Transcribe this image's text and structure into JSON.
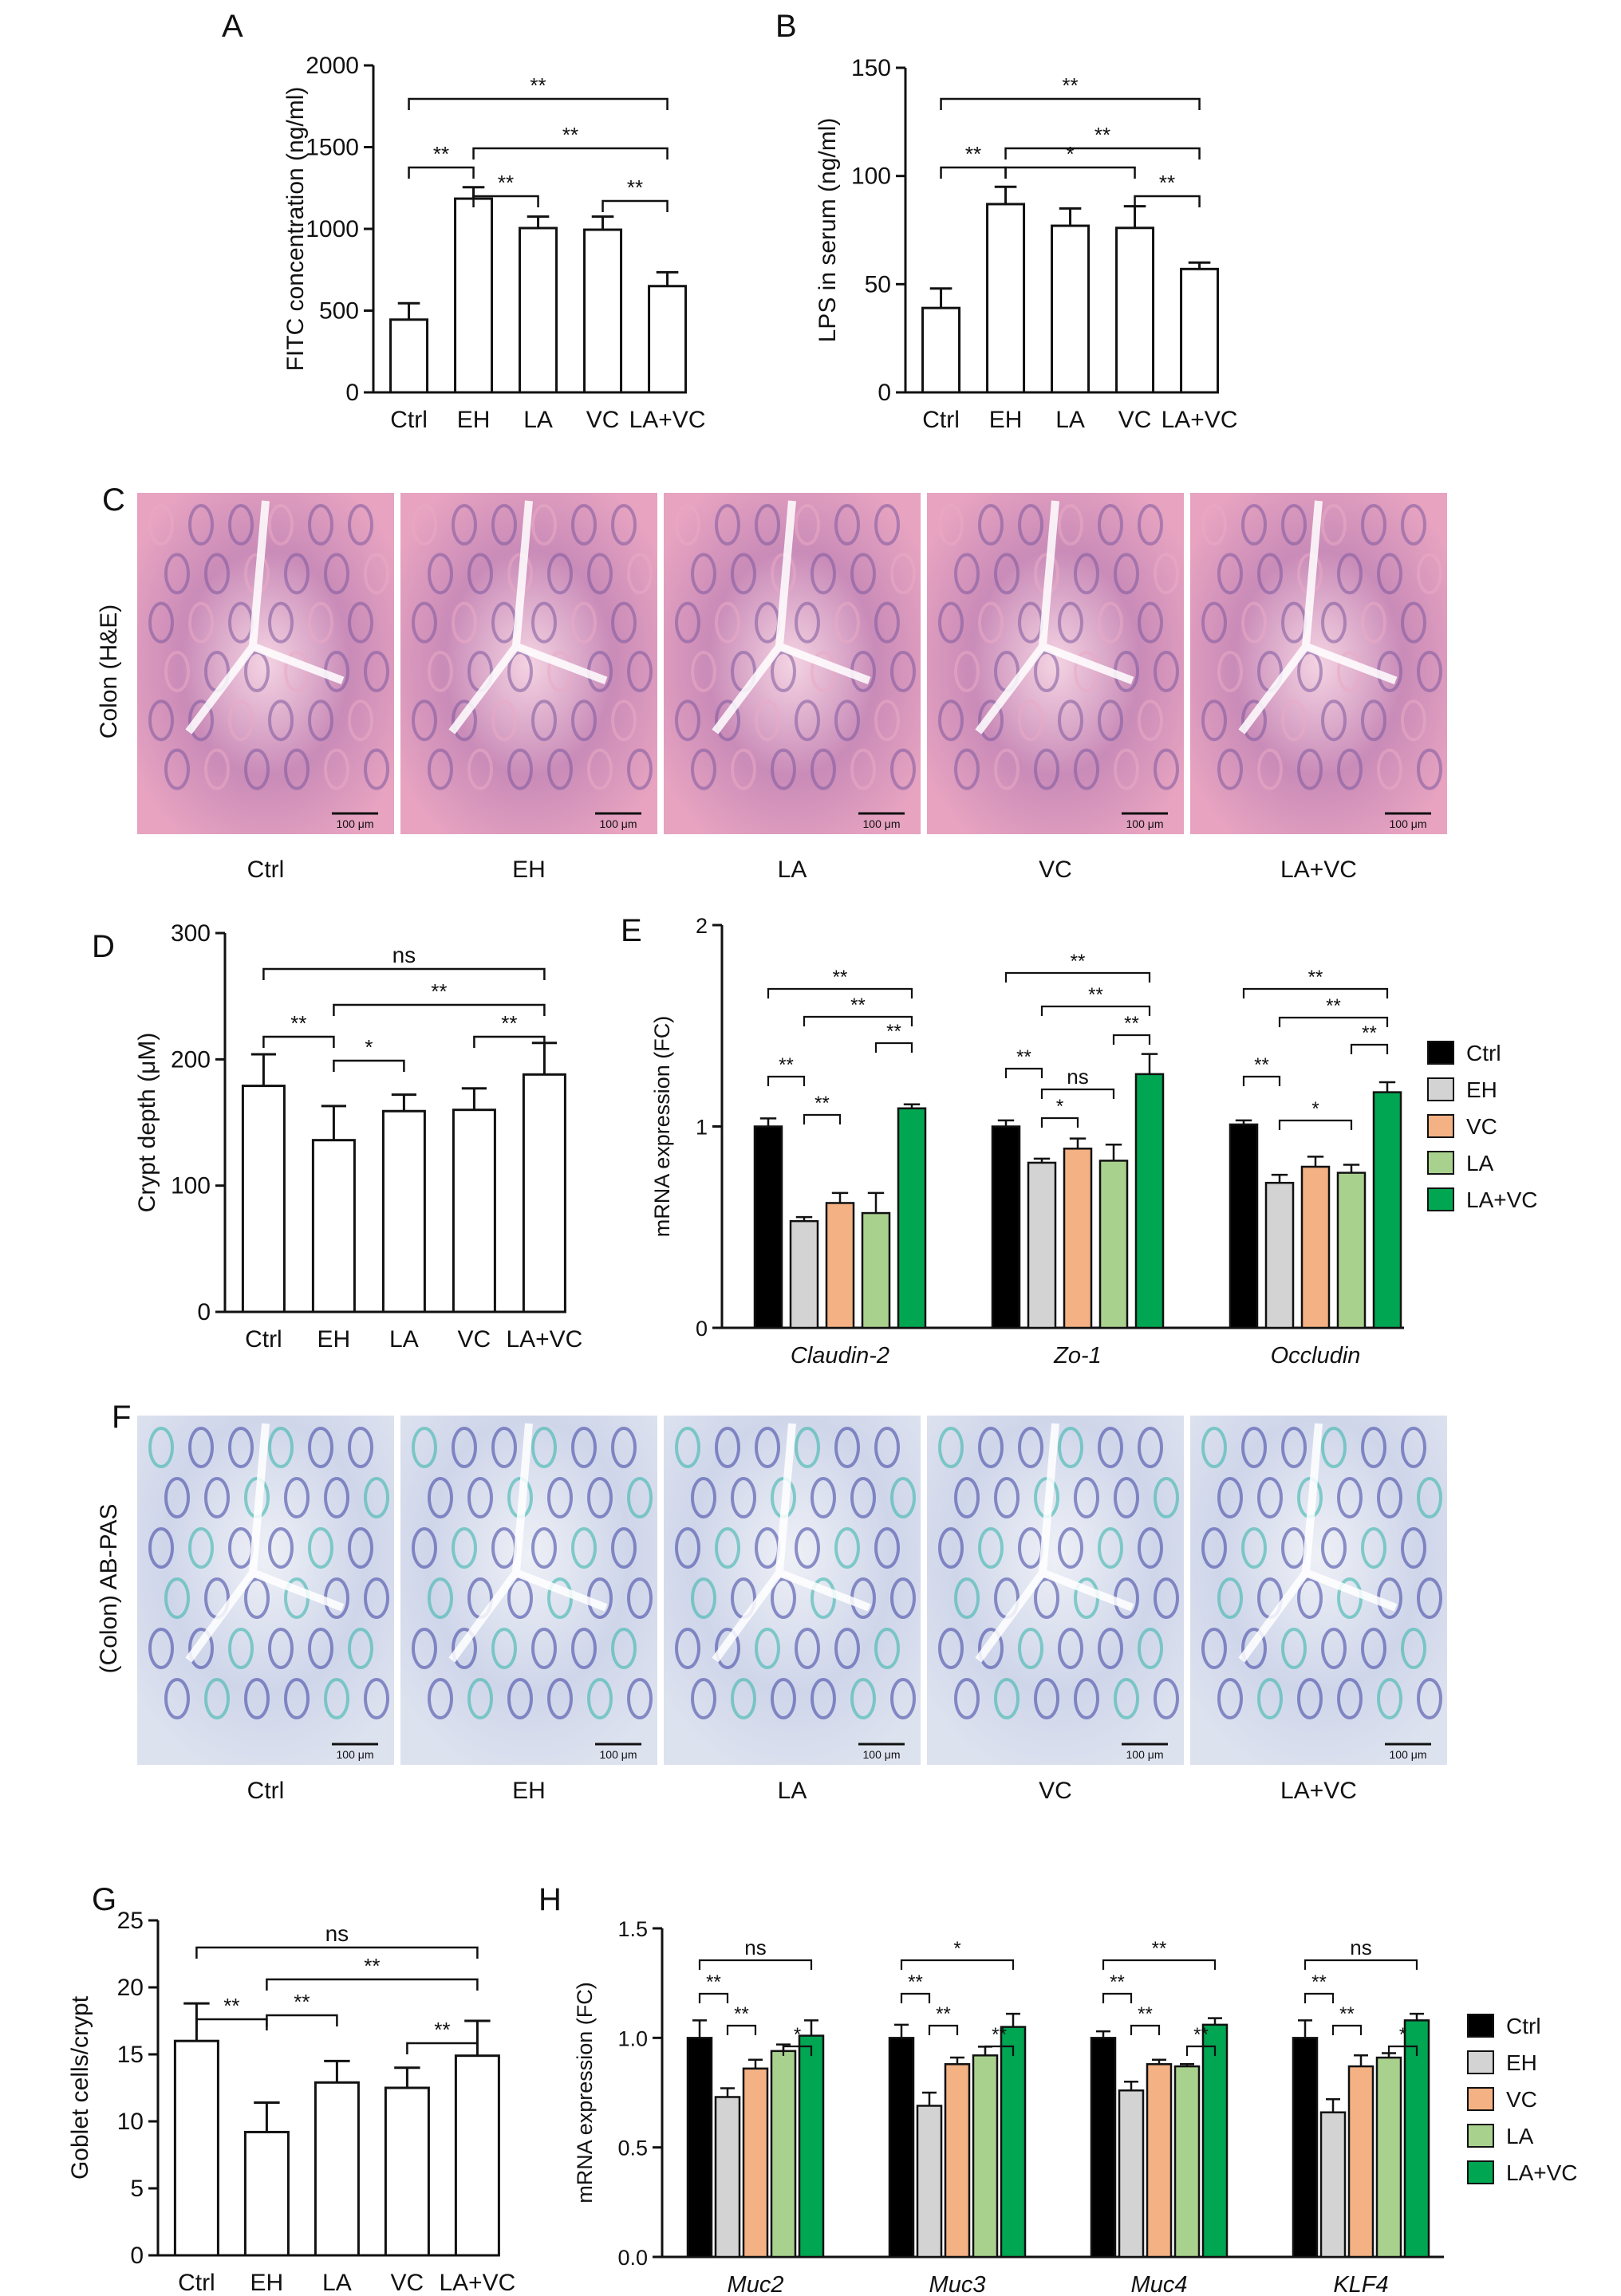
{
  "chart_data": [
    {
      "panel": "A",
      "type": "bar",
      "categories": [
        "Ctrl",
        "EH",
        "LA",
        "VC",
        "LA+VC"
      ],
      "values": [
        445,
        1185,
        1005,
        995,
        650
      ],
      "errors": [
        100,
        70,
        70,
        80,
        85
      ],
      "ylabel": "FITC concentration (ng/ml)",
      "ylim": [
        0,
        2000
      ],
      "yticks": [
        "0",
        "500",
        "1000",
        "1500",
        "2000"
      ],
      "brackets": [
        {
          "from": 0,
          "to": 4,
          "label": "**"
        },
        {
          "from": 1,
          "to": 4,
          "label": "**"
        },
        {
          "from": 0,
          "to": 1,
          "label": "**"
        },
        {
          "from": 1,
          "to": 2,
          "label": "**"
        },
        {
          "from": 3,
          "to": 4,
          "label": "**"
        }
      ]
    },
    {
      "panel": "B",
      "type": "bar",
      "categories": [
        "Ctrl",
        "EH",
        "LA",
        "VC",
        "LA+VC"
      ],
      "values": [
        39,
        87,
        77,
        76,
        57
      ],
      "errors": [
        9,
        8,
        8,
        10,
        3
      ],
      "ylabel": "LPS in serum (ng/ml)",
      "ylim": [
        0,
        150
      ],
      "yticks": [
        "0",
        "50",
        "100",
        "150"
      ],
      "brackets": [
        {
          "from": 0,
          "to": 4,
          "label": "**"
        },
        {
          "from": 1,
          "to": 4,
          "label": "**"
        },
        {
          "from": 0,
          "to": 1,
          "label": "**"
        },
        {
          "from": 1,
          "to": 3,
          "label": "*"
        },
        {
          "from": 3,
          "to": 4,
          "label": "**"
        }
      ]
    },
    {
      "panel": "D",
      "type": "bar",
      "categories": [
        "Ctrl",
        "EH",
        "LA",
        "VC",
        "LA+VC"
      ],
      "values": [
        179,
        136,
        159,
        160,
        188
      ],
      "errors": [
        25,
        27,
        13,
        17,
        25
      ],
      "ylabel": "Crypt depth (μM)",
      "ylim": [
        0,
        300
      ],
      "yticks": [
        "0",
        "100",
        "200",
        "300"
      ],
      "brackets": [
        {
          "from": 0,
          "to": 4,
          "label": "ns"
        },
        {
          "from": 1,
          "to": 4,
          "label": "**"
        },
        {
          "from": 0,
          "to": 1,
          "label": "**"
        },
        {
          "from": 1,
          "to": 2,
          "label": "*"
        },
        {
          "from": 3,
          "to": 4,
          "label": "**"
        }
      ]
    },
    {
      "panel": "G",
      "type": "bar",
      "categories": [
        "Ctrl",
        "EH",
        "LA",
        "VC",
        "LA+VC"
      ],
      "values": [
        16,
        9.2,
        12.9,
        12.5,
        14.9
      ],
      "errors": [
        2.8,
        2.2,
        1.6,
        1.5,
        2.6
      ],
      "ylabel": "Goblet cells/crypt",
      "ylim": [
        0,
        25
      ],
      "yticks": [
        "0",
        "5",
        "10",
        "15",
        "20",
        "25"
      ],
      "brackets": [
        {
          "from": 0,
          "to": 4,
          "label": "ns"
        },
        {
          "from": 1,
          "to": 4,
          "label": "**"
        },
        {
          "from": 0,
          "to": 1,
          "label": "**"
        },
        {
          "from": 1,
          "to": 2,
          "label": "**"
        },
        {
          "from": 3,
          "to": 4,
          "label": "**"
        }
      ]
    },
    {
      "panel": "E",
      "type": "bar",
      "categories": [
        "Claudin-2",
        "Zo-1",
        "Occludin"
      ],
      "series": [
        {
          "name": "Ctrl",
          "values": [
            1.0,
            1.0,
            1.01
          ],
          "errors": [
            0.04,
            0.03,
            0.02
          ]
        },
        {
          "name": "EH",
          "values": [
            0.53,
            0.82,
            0.72
          ],
          "errors": [
            0.02,
            0.02,
            0.04
          ]
        },
        {
          "name": "VC",
          "values": [
            0.62,
            0.89,
            0.8
          ],
          "errors": [
            0.05,
            0.05,
            0.05
          ]
        },
        {
          "name": "LA",
          "values": [
            0.57,
            0.83,
            0.77
          ],
          "errors": [
            0.1,
            0.08,
            0.04
          ]
        },
        {
          "name": "LA+VC",
          "values": [
            1.09,
            1.26,
            1.17
          ],
          "errors": [
            0.02,
            0.1,
            0.05
          ]
        }
      ],
      "ylabel": "mRNA expression (FC)",
      "ylim": [
        0,
        2
      ],
      "yticks": [
        "0",
        "1",
        "2"
      ],
      "brackets": [
        [
          {
            "from": 0,
            "to": 4,
            "label": "**"
          },
          {
            "from": 1,
            "to": 4,
            "label": "**"
          },
          {
            "from": 3,
            "to": 4,
            "label": "**"
          },
          {
            "from": 0,
            "to": 1,
            "label": "**"
          },
          {
            "from": 1,
            "to": 2,
            "label": "**"
          }
        ],
        [
          {
            "from": 0,
            "to": 4,
            "label": "**"
          },
          {
            "from": 1,
            "to": 4,
            "label": "**"
          },
          {
            "from": 3,
            "to": 4,
            "label": "**"
          },
          {
            "from": 0,
            "to": 1,
            "label": "**"
          },
          {
            "from": 1,
            "to": 3,
            "label": "ns"
          },
          {
            "from": 1,
            "to": 2,
            "label": "*"
          }
        ],
        [
          {
            "from": 0,
            "to": 4,
            "label": "**"
          },
          {
            "from": 1,
            "to": 4,
            "label": "**"
          },
          {
            "from": 3,
            "to": 4,
            "label": "**"
          },
          {
            "from": 0,
            "to": 1,
            "label": "**"
          },
          {
            "from": 1,
            "to": 3,
            "label": "*"
          }
        ]
      ]
    },
    {
      "panel": "H",
      "type": "bar",
      "categories": [
        "Muc2",
        "Muc3",
        "Muc4",
        "KLF4"
      ],
      "series": [
        {
          "name": "Ctrl",
          "values": [
            1.0,
            1.0,
            1.0,
            1.0
          ],
          "errors": [
            0.08,
            0.06,
            0.03,
            0.08
          ]
        },
        {
          "name": "EH",
          "values": [
            0.73,
            0.69,
            0.76,
            0.66
          ],
          "errors": [
            0.04,
            0.06,
            0.04,
            0.06
          ]
        },
        {
          "name": "VC",
          "values": [
            0.86,
            0.88,
            0.88,
            0.87
          ],
          "errors": [
            0.04,
            0.03,
            0.02,
            0.05
          ]
        },
        {
          "name": "LA",
          "values": [
            0.94,
            0.92,
            0.87,
            0.91
          ],
          "errors": [
            0.03,
            0.04,
            0.01,
            0.02
          ]
        },
        {
          "name": "LA+VC",
          "values": [
            1.01,
            1.05,
            1.06,
            1.08
          ],
          "errors": [
            0.07,
            0.06,
            0.03,
            0.03
          ]
        }
      ],
      "ylabel": "mRNA expression (FC)",
      "ylim": [
        0,
        1.5
      ],
      "yticks": [
        "0.0",
        "0.5",
        "1.0",
        "1.5"
      ],
      "brackets": [
        [
          {
            "from": 0,
            "to": 4,
            "label": "ns"
          },
          {
            "from": 0,
            "to": 1,
            "label": "**"
          },
          {
            "from": 1,
            "to": 2,
            "label": "**"
          },
          {
            "from": 3,
            "to": 4,
            "label": "*"
          }
        ],
        [
          {
            "from": 0,
            "to": 4,
            "label": "*"
          },
          {
            "from": 0,
            "to": 1,
            "label": "**"
          },
          {
            "from": 1,
            "to": 2,
            "label": "**"
          },
          {
            "from": 3,
            "to": 4,
            "label": "**"
          }
        ],
        [
          {
            "from": 0,
            "to": 4,
            "label": "**"
          },
          {
            "from": 0,
            "to": 1,
            "label": "**"
          },
          {
            "from": 1,
            "to": 2,
            "label": "**"
          },
          {
            "from": 3,
            "to": 4,
            "label": "**"
          }
        ],
        [
          {
            "from": 0,
            "to": 4,
            "label": "ns"
          },
          {
            "from": 0,
            "to": 1,
            "label": "**"
          },
          {
            "from": 1,
            "to": 2,
            "label": "**"
          },
          {
            "from": 3,
            "to": 4,
            "label": "*"
          }
        ]
      ]
    }
  ],
  "legend": {
    "E": [
      "Ctrl",
      "EH",
      "VC",
      "LA",
      "LA+VC"
    ],
    "H": [
      "Ctrl",
      "EH",
      "VC",
      "LA",
      "LA+VC"
    ]
  },
  "series_colors": [
    "#000000",
    "#d3d3d3",
    "#f4b183",
    "#a9d18e",
    "#00a651"
  ],
  "panel_letters": [
    "A",
    "B",
    "C",
    "D",
    "E",
    "F",
    "G",
    "H"
  ],
  "micrographs": {
    "C": {
      "row_label": "Colon (H&E)",
      "groups": [
        "Ctrl",
        "EH",
        "LA",
        "VC",
        "LA+VC"
      ],
      "scale_bar": "100 μm",
      "stain_colors": [
        "#e9a9c4",
        "#7e5a9e"
      ]
    },
    "F": {
      "row_label": "(Colon) AB-PAS",
      "groups": [
        "Ctrl",
        "EH",
        "LA",
        "VC",
        "LA+VC"
      ],
      "scale_bar": "100 μm",
      "stain_colors": [
        "#d8dcea",
        "#2fb3a8",
        "#3a3fa0"
      ]
    }
  }
}
